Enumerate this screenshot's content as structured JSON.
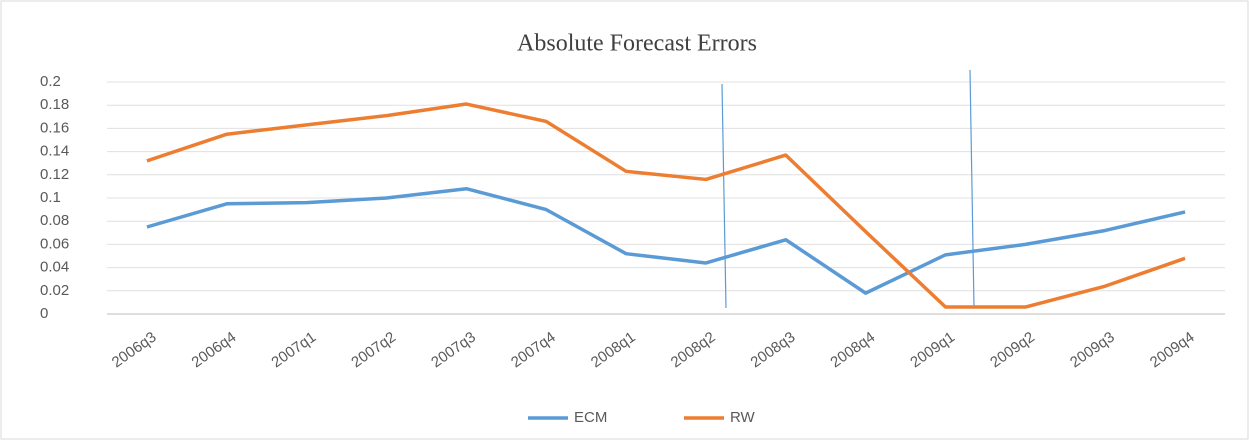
{
  "chart_data": {
    "type": "line",
    "title": "Absolute Forecast Errors",
    "categories": [
      "2006q3",
      "2006q4",
      "2007q1",
      "2007q2",
      "2007q3",
      "2007q4",
      "2008q1",
      "2008q2",
      "2008q3",
      "2008q4",
      "2009q1",
      "2009q2",
      "2009q3",
      "2009q4"
    ],
    "series": [
      {
        "name": "ECM",
        "color": "#5b9bd5",
        "values": [
          0.075,
          0.095,
          0.096,
          0.1,
          0.108,
          0.09,
          0.052,
          0.044,
          0.064,
          0.018,
          0.051,
          0.06,
          0.072,
          0.088
        ]
      },
      {
        "name": "RW",
        "color": "#ed7d31",
        "values": [
          0.132,
          0.155,
          0.163,
          0.171,
          0.181,
          0.166,
          0.123,
          0.116,
          0.137,
          0.071,
          0.006,
          0.006,
          0.024,
          0.048
        ]
      }
    ],
    "ylim": [
      0,
      0.2
    ],
    "yticks": [
      0,
      0.02,
      0.04,
      0.06,
      0.08,
      0.1,
      0.12,
      0.14,
      0.16,
      0.18,
      0.2
    ],
    "grid": true,
    "legend": "bottom"
  }
}
